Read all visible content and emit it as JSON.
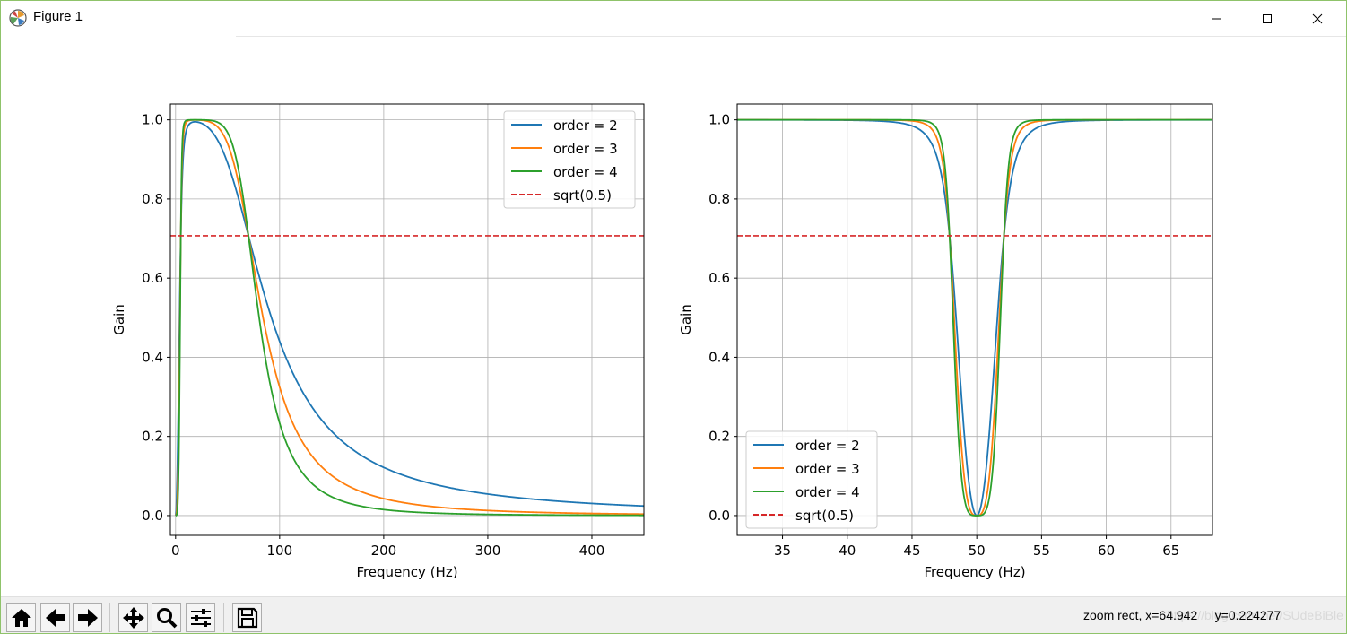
{
  "window": {
    "title": "Figure 1"
  },
  "toolbar": {
    "buttons": [
      "home-button",
      "back-button",
      "forward-button",
      "pan-button",
      "zoom-button",
      "configure-subplots-button",
      "save-button"
    ],
    "status": "zoom rect, x=64.942     y=0.224277",
    "watermark": "https://blog.csdn.net/SUdeBiBle"
  },
  "colors": {
    "order2": "#1f77b4",
    "order3": "#ff7f0e",
    "order4": "#2ca02c",
    "ref": "#d62728",
    "grid": "#b0b0b0"
  },
  "chart_data": [
    {
      "type": "line",
      "title": "",
      "xlabel": "Frequency (Hz)",
      "ylabel": "Gain",
      "xlim": [
        -5,
        450
      ],
      "ylim": [
        -0.05,
        1.04
      ],
      "xticks": [
        0,
        100,
        200,
        300,
        400
      ],
      "yticks": [
        0.0,
        0.2,
        0.4,
        0.6,
        0.8,
        1.0
      ],
      "ytick_labels": [
        "0.0",
        "0.2",
        "0.4",
        "0.6",
        "0.8",
        "1.0"
      ],
      "grid": true,
      "legend_position": "upper right",
      "filter": {
        "kind": "bandpass",
        "low_hz": 5,
        "high_hz": 70
      },
      "series": [
        {
          "name": "order = 2",
          "order": 2,
          "color": "#1f77b4",
          "style": "solid"
        },
        {
          "name": "order = 3",
          "order": 3,
          "color": "#ff7f0e",
          "style": "solid"
        },
        {
          "name": "order = 4",
          "order": 4,
          "color": "#2ca02c",
          "style": "solid"
        },
        {
          "name": "sqrt(0.5)",
          "color": "#d62728",
          "style": "dashed",
          "constant": 0.7071
        }
      ]
    },
    {
      "type": "line",
      "title": "",
      "xlabel": "Frequency (Hz)",
      "ylabel": "Gain",
      "xlim": [
        31.5,
        68.2
      ],
      "ylim": [
        -0.05,
        1.04
      ],
      "xticks": [
        35,
        40,
        45,
        50,
        55,
        60,
        65
      ],
      "yticks": [
        0.0,
        0.2,
        0.4,
        0.6,
        0.8,
        1.0
      ],
      "ytick_labels": [
        "0.0",
        "0.2",
        "0.4",
        "0.6",
        "0.8",
        "1.0"
      ],
      "grid": true,
      "legend_position": "lower left",
      "filter": {
        "kind": "bandstop",
        "center_hz": 50,
        "halfwidth_hz": 2.1
      },
      "series": [
        {
          "name": "order = 2",
          "order": 2,
          "color": "#1f77b4",
          "style": "solid"
        },
        {
          "name": "order = 3",
          "order": 3,
          "color": "#ff7f0e",
          "style": "solid"
        },
        {
          "name": "order = 4",
          "order": 4,
          "color": "#2ca02c",
          "style": "solid"
        },
        {
          "name": "sqrt(0.5)",
          "color": "#d62728",
          "style": "dashed",
          "constant": 0.7071
        }
      ]
    }
  ]
}
